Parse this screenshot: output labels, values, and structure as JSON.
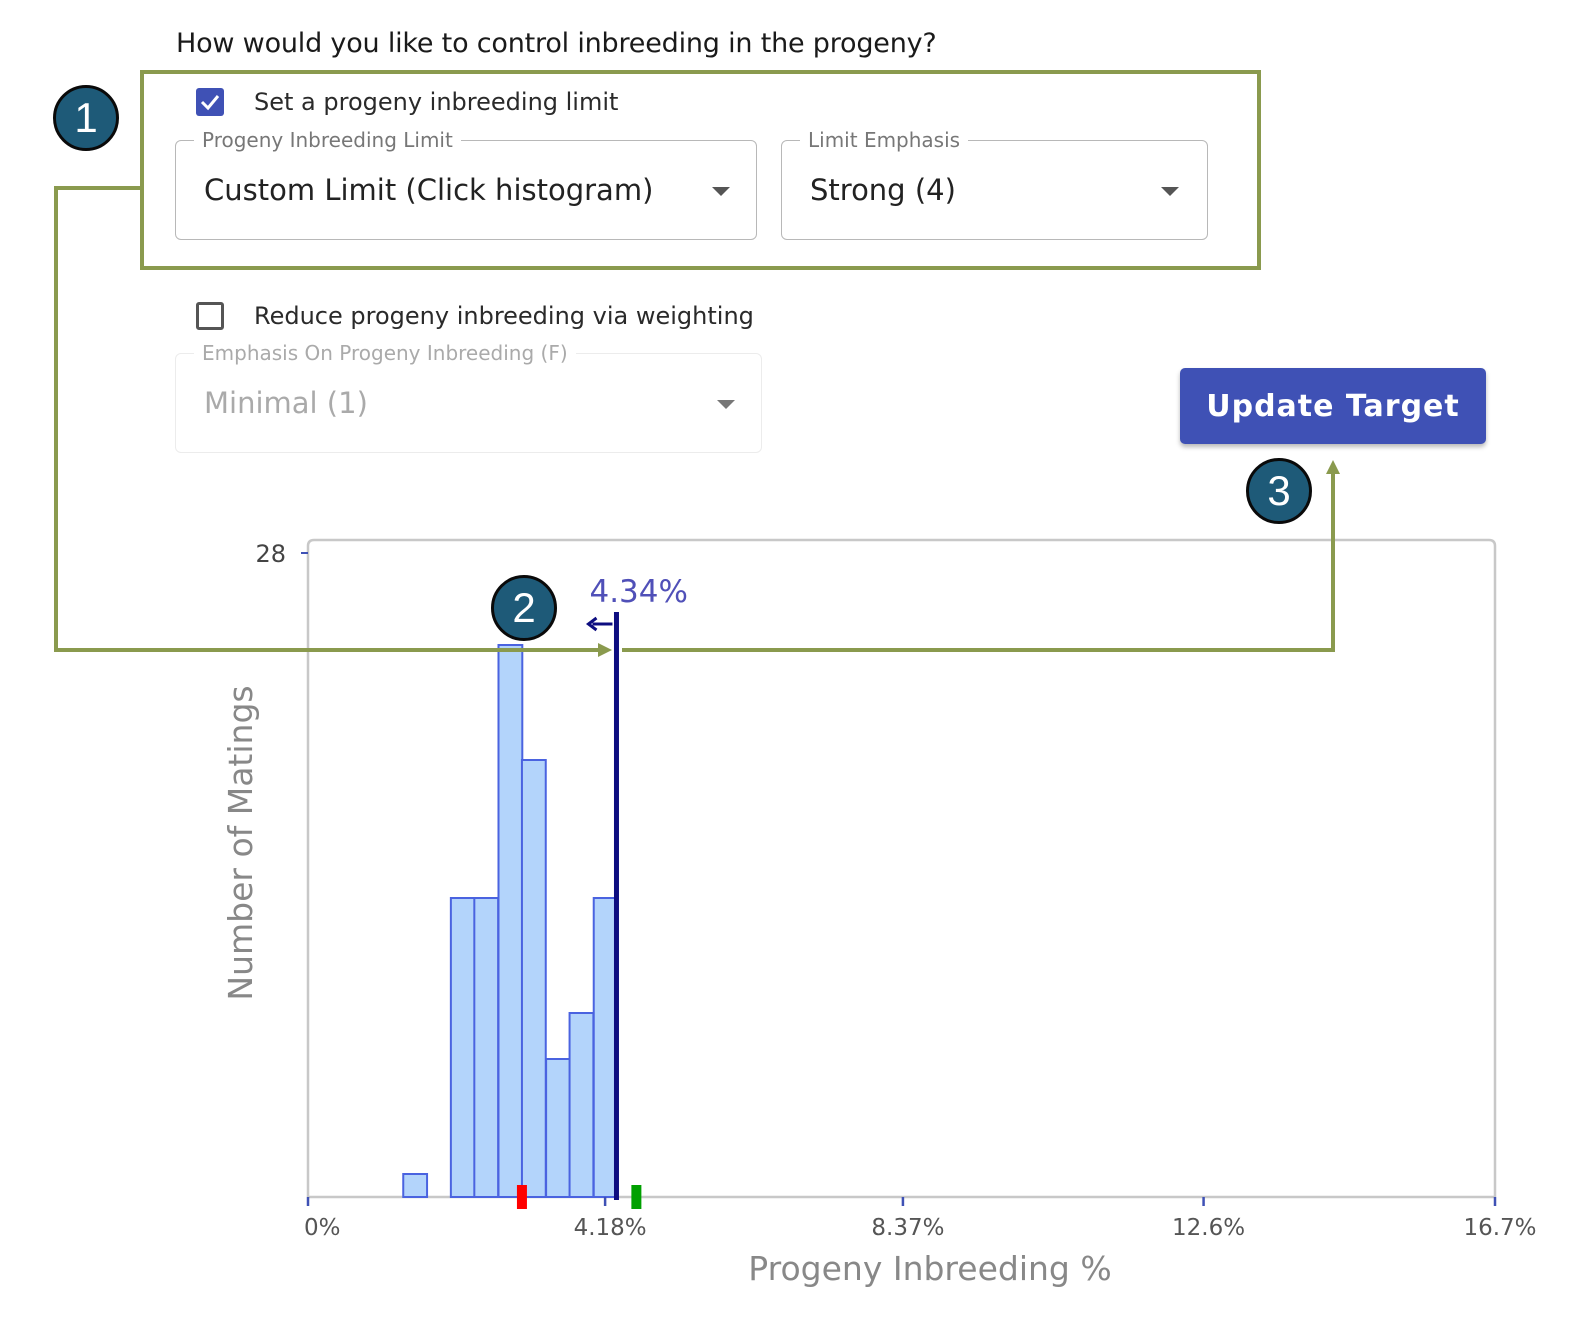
{
  "question": "How would you like to control inbreeding in the progeny?",
  "limit_section": {
    "checkbox_label": "Set a progeny inbreeding limit",
    "checked": true,
    "limit_field": {
      "label": "Progeny Inbreeding Limit",
      "value": "Custom Limit (Click histogram)"
    },
    "emphasis_field": {
      "label": "Limit Emphasis",
      "value": "Strong (4)"
    }
  },
  "weighting_section": {
    "checkbox_label": "Reduce progeny inbreeding via weighting",
    "checked": false,
    "emphasis_field": {
      "label": "Emphasis On Progeny Inbreeding (F)",
      "value": "Minimal (1)"
    }
  },
  "update_button": {
    "label": "Update Target"
  },
  "step_badges": [
    "1",
    "2",
    "3"
  ],
  "colors": {
    "accent": "#3f51b5",
    "badge": "#1e5a78",
    "highlight": "#8a9a4e",
    "bar_fill": "#b3d4fb",
    "bar_stroke": "#4a63e0",
    "limit_line": "#0d0d80"
  },
  "chart_data": {
    "type": "bar",
    "xlabel": "Progeny Inbreeding %",
    "ylabel": "Number of Matings",
    "x_ticks": [
      {
        "value": 0,
        "label": "0%"
      },
      {
        "value": 4.18,
        "label": "4.18%"
      },
      {
        "value": 8.37,
        "label": "8.37%"
      },
      {
        "value": 12.6,
        "label": "12.6%"
      },
      {
        "value": 16.7,
        "label": "16.7%"
      }
    ],
    "y_ticks": [
      {
        "value": 28,
        "label": "28"
      }
    ],
    "xlim": [
      0,
      16.7
    ],
    "ylim": [
      0,
      28
    ],
    "bin_width": 0.335,
    "bins": [
      {
        "x": 1.34,
        "count": 1
      },
      {
        "x": 2.01,
        "count": 13
      },
      {
        "x": 2.34,
        "count": 13
      },
      {
        "x": 2.68,
        "count": 24
      },
      {
        "x": 3.01,
        "count": 19
      },
      {
        "x": 3.35,
        "count": 6
      },
      {
        "x": 3.68,
        "count": 8
      },
      {
        "x": 4.02,
        "count": 13
      }
    ],
    "limit": {
      "value": 4.34,
      "label": "4.34%"
    },
    "markers": [
      {
        "x": 3.01,
        "color": "#ff0000"
      },
      {
        "x": 4.62,
        "color": "#00a000"
      }
    ]
  }
}
